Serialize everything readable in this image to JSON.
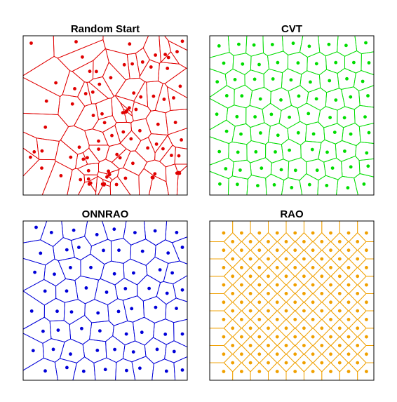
{
  "panels": [
    {
      "id": "random-start",
      "title": "Random Start",
      "color": "#e00000",
      "arrangement": "random"
    },
    {
      "id": "cvt",
      "title": "CVT",
      "color": "#00dd00",
      "arrangement": "centroidal"
    },
    {
      "id": "onnrao",
      "title": "ONNRAO",
      "color": "#0000d8",
      "arrangement": "near-regular"
    },
    {
      "id": "rao",
      "title": "RAO",
      "color": "#f0a000",
      "arrangement": "diagonal-lattice"
    }
  ]
}
